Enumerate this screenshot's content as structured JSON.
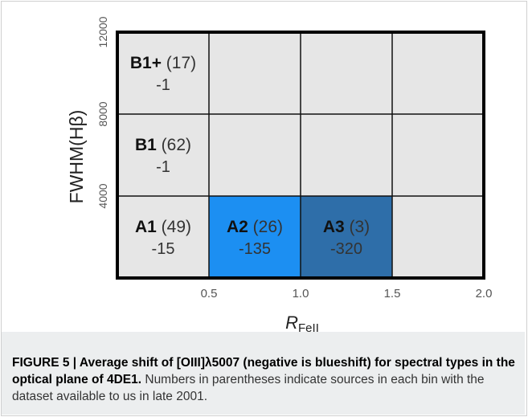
{
  "chart_data": {
    "type": "heatmap",
    "ylabel": "FWHM(Hβ)",
    "xlabel_main": "R",
    "xlabel_sub": "FeII",
    "x_ticks": [
      "0.5",
      "1.0",
      "1.5",
      "2.0"
    ],
    "y_ticks": [
      "4000",
      "8000",
      "12000"
    ],
    "x_bins": [
      [
        0,
        0.5
      ],
      [
        0.5,
        1.0
      ],
      [
        1.0,
        1.5
      ],
      [
        1.5,
        2.0
      ]
    ],
    "y_bins": [
      [
        0,
        4000
      ],
      [
        4000,
        8000
      ],
      [
        8000,
        12000
      ]
    ],
    "cells": [
      {
        "label": "B1+",
        "count": "(17)",
        "shift": "-1",
        "col": 0,
        "row": 2,
        "color": "#e6e6e6"
      },
      {
        "label": "",
        "count": "",
        "shift": "",
        "col": 1,
        "row": 2,
        "color": "#e6e6e6"
      },
      {
        "label": "",
        "count": "",
        "shift": "",
        "col": 2,
        "row": 2,
        "color": "#e6e6e6"
      },
      {
        "label": "",
        "count": "",
        "shift": "",
        "col": 3,
        "row": 2,
        "color": "#e6e6e6"
      },
      {
        "label": "B1",
        "count": "(62)",
        "shift": "-1",
        "col": 0,
        "row": 1,
        "color": "#e6e6e6"
      },
      {
        "label": "",
        "count": "",
        "shift": "",
        "col": 1,
        "row": 1,
        "color": "#e6e6e6"
      },
      {
        "label": "",
        "count": "",
        "shift": "",
        "col": 2,
        "row": 1,
        "color": "#e6e6e6"
      },
      {
        "label": "",
        "count": "",
        "shift": "",
        "col": 3,
        "row": 1,
        "color": "#e6e6e6"
      },
      {
        "label": "A1",
        "count": "(49)",
        "shift": "-15",
        "col": 0,
        "row": 0,
        "color": "#e6e6e6"
      },
      {
        "label": "A2",
        "count": "(26)",
        "shift": "-135",
        "col": 1,
        "row": 0,
        "color": "#1c8ff2"
      },
      {
        "label": "A3",
        "count": "(3)",
        "shift": "-320",
        "col": 2,
        "row": 0,
        "color": "#2e6ea9"
      },
      {
        "label": "",
        "count": "",
        "shift": "",
        "col": 3,
        "row": 0,
        "color": "#e6e6e6"
      }
    ]
  },
  "caption": {
    "bold": "FIGURE 5 | Average shift of [OIII]λ5007 (negative is blueshift) for spectral types in the optical plane of 4DE1.",
    "text": " Numbers in parentheses indicate sources in each bin with the dataset available to us in late 2001."
  }
}
